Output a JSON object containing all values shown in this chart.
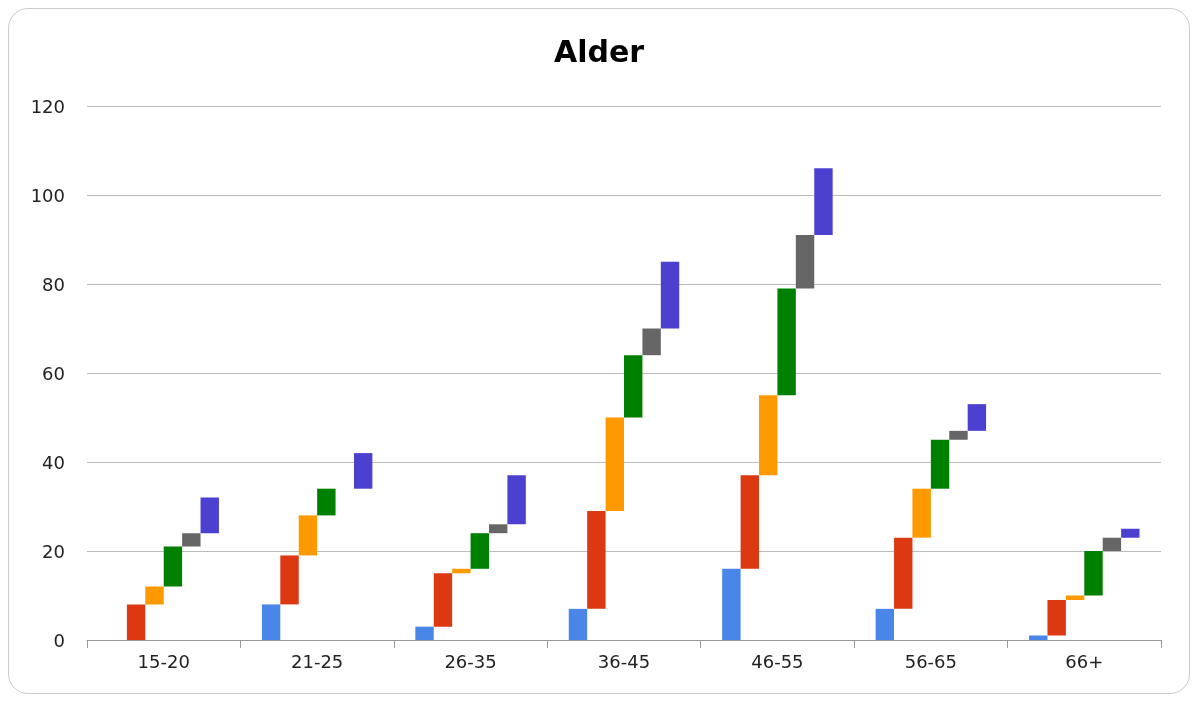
{
  "chart_data": {
    "type": "bar",
    "title": "Alder",
    "categories": [
      "15-20",
      "21-25",
      "26-35",
      "36-45",
      "46-55",
      "56-65",
      "66+"
    ],
    "series": [
      {
        "color": "#4a86e8",
        "base": [
          null,
          0,
          0,
          0,
          0,
          0,
          0
        ],
        "values": [
          null,
          8,
          3,
          7,
          16,
          7,
          1
        ]
      },
      {
        "color": "#dc3912",
        "base": [
          0,
          8,
          3,
          7,
          16,
          7,
          1
        ],
        "values": [
          8,
          11,
          12,
          22,
          21,
          16,
          8
        ]
      },
      {
        "color": "#ff9900",
        "base": [
          8,
          19,
          15,
          29,
          37,
          23,
          9
        ],
        "values": [
          4,
          9,
          1,
          21,
          18,
          11,
          1
        ]
      },
      {
        "color": "#008000",
        "base": [
          12,
          28,
          16,
          50,
          55,
          34,
          10
        ],
        "values": [
          9,
          6,
          8,
          14,
          24,
          11,
          10
        ]
      },
      {
        "color": "#666666",
        "base": [
          21,
          null,
          24,
          64,
          79,
          45,
          20
        ],
        "values": [
          3,
          null,
          2,
          6,
          12,
          2,
          3
        ]
      },
      {
        "color": "#4b40d0",
        "base": [
          24,
          34,
          26,
          70,
          91,
          47,
          23
        ],
        "values": [
          8,
          8,
          11,
          15,
          15,
          6,
          2
        ]
      }
    ],
    "ylim": [
      0,
      120
    ],
    "yticks": [
      0,
      20,
      40,
      60,
      80,
      100,
      120
    ],
    "grid": "y"
  }
}
